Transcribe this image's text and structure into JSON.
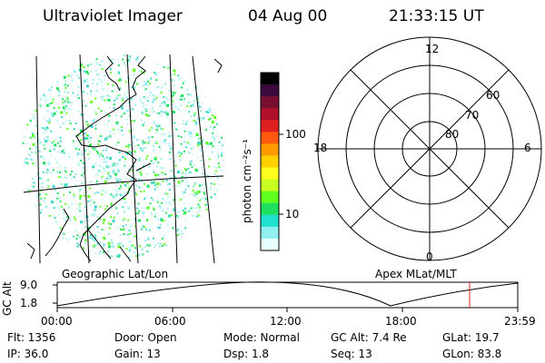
{
  "header": {
    "instrument": "Ultraviolet Imager",
    "date": "04 Aug 00",
    "time": "21:33:15 UT"
  },
  "colorbar": {
    "label": "photon cm⁻²s⁻¹",
    "ticks": [
      "100",
      "10"
    ],
    "colors": [
      "#000000",
      "#3c0a3c",
      "#7a1030",
      "#b0102a",
      "#e02020",
      "#ff5a10",
      "#ff9a00",
      "#ffd000",
      "#ffff20",
      "#c8ff20",
      "#60ff20",
      "#20e060",
      "#20e0d0",
      "#90f0f0",
      "#e8ffff"
    ]
  },
  "geo_panel": {
    "caption": "Geographic Lat/Lon"
  },
  "polar_panel": {
    "caption": "Apex MLat/MLT",
    "mlt_labels": {
      "top": "12",
      "left": "18",
      "right": "6",
      "bottom": "0"
    },
    "lat_labels": [
      "60",
      "70",
      "80"
    ]
  },
  "altitude_strip": {
    "ylabel": "GC Alt",
    "yticks": [
      "9.0",
      "1.8"
    ],
    "xticks": [
      "00:00",
      "06:00",
      "12:00",
      "18:00",
      "23:59"
    ],
    "marker_color": "#e02020"
  },
  "status": {
    "flt": "Flt: 1356",
    "ip": "IP: 36.0",
    "door": "Door: Open",
    "gain": "Gain: 13",
    "mode": "Mode: Normal",
    "dsp": "Dsp:    1.8",
    "gcalt": "GC Alt: 7.4 Re",
    "seq": "Seq: 13",
    "glat": "GLat:  19.7",
    "glon": "GLon:  83.8"
  }
}
